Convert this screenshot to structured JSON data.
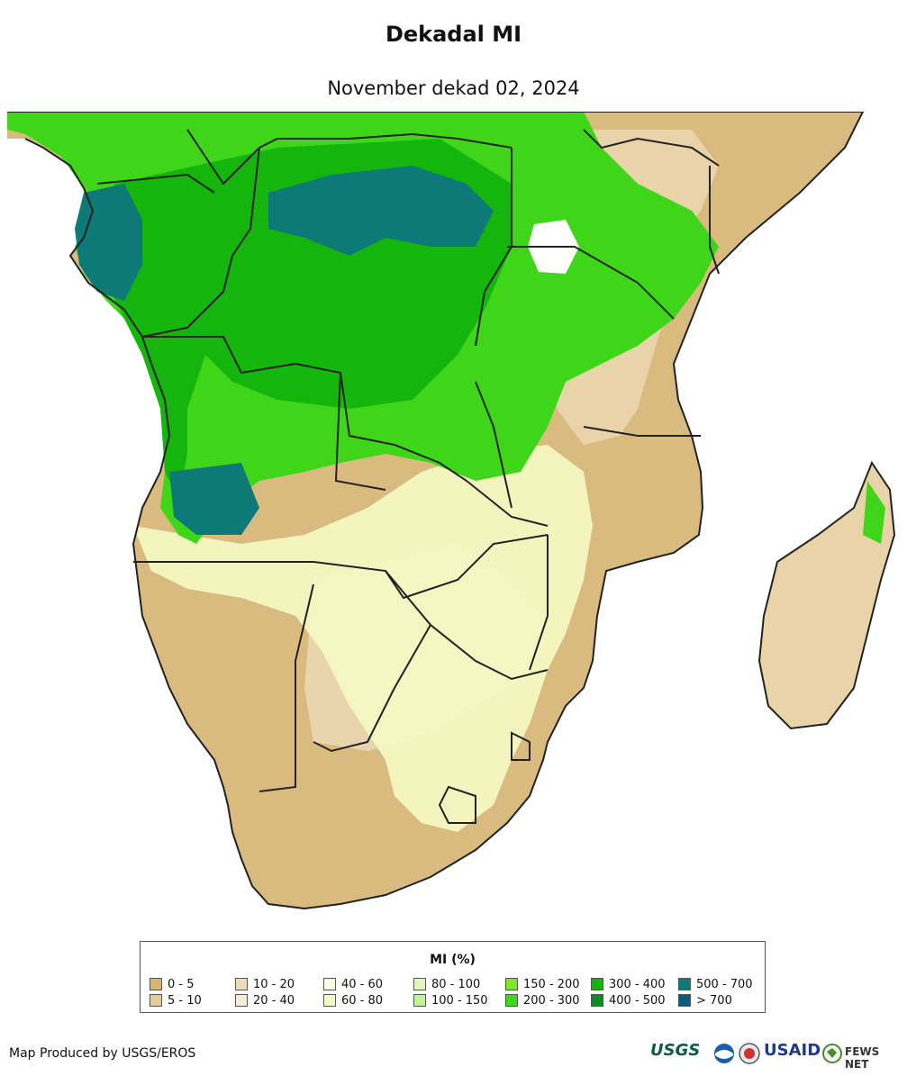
{
  "title": "Dekadal MI",
  "subtitle": "November dekad 02, 2024",
  "legend": {
    "title": "MI (%)",
    "items": [
      {
        "label": "0 - 5",
        "color": "#d6b577"
      },
      {
        "label": "5 - 10",
        "color": "#e3cc98"
      },
      {
        "label": "10 - 20",
        "color": "#ecdcb8"
      },
      {
        "label": "20 - 40",
        "color": "#f5ead6"
      },
      {
        "label": "40 - 60",
        "color": "#fdfde4"
      },
      {
        "label": "60 - 80",
        "color": "#f5fbc4"
      },
      {
        "label": "80 - 100",
        "color": "#e2f7b8"
      },
      {
        "label": "100 - 150",
        "color": "#c2f29a"
      },
      {
        "label": "150 - 200",
        "color": "#7fe82a"
      },
      {
        "label": "200 - 300",
        "color": "#3fd61a"
      },
      {
        "label": "300 - 400",
        "color": "#14b50c"
      },
      {
        "label": "400 - 500",
        "color": "#0a8e2a"
      },
      {
        "label": "500 - 700",
        "color": "#0e7a78"
      },
      {
        "label": "> 700",
        "color": "#0c5a7e"
      }
    ]
  },
  "credit": "Map Produced by USGS/EROS",
  "logos": {
    "usgs": "USGS",
    "usaid": "USAID",
    "fewsnet": "FEWS NET"
  }
}
